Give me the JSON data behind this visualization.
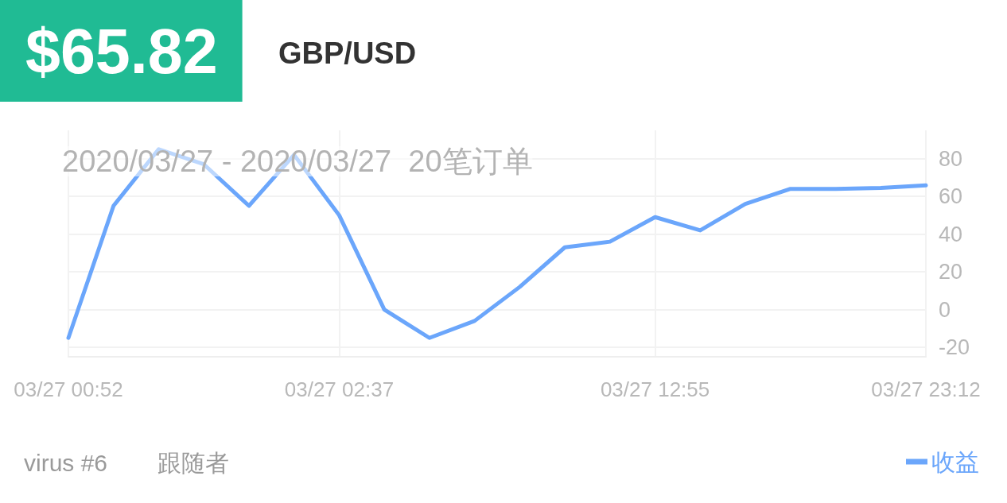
{
  "chart_data": {
    "type": "line",
    "title": "$65.82",
    "subtitle": "GBP/USD",
    "categories": [
      "03/27 00:52",
      null,
      null,
      null,
      null,
      null,
      "03/27 02:37",
      null,
      null,
      null,
      null,
      null,
      null,
      "03/27 12:55",
      null,
      null,
      null,
      null,
      null,
      "03/27 23:12"
    ],
    "series": [
      {
        "name": "收益",
        "color": "#6ba6fb",
        "values": [
          -15,
          55,
          85,
          77,
          55,
          82,
          50,
          0,
          -15,
          -6,
          12,
          33,
          36,
          49,
          42,
          56,
          64,
          64,
          64.5,
          65.8
        ]
      }
    ],
    "ylim": [
      -25,
      95
    ],
    "yticks": [
      -20,
      0,
      20,
      40,
      60,
      80
    ],
    "grid": true,
    "legend": "bottom right",
    "marker": "none",
    "annotations": [
      "2020/03/27 - 2020/03/27  20笔订单",
      "virus #6",
      "跟随者"
    ]
  }
}
